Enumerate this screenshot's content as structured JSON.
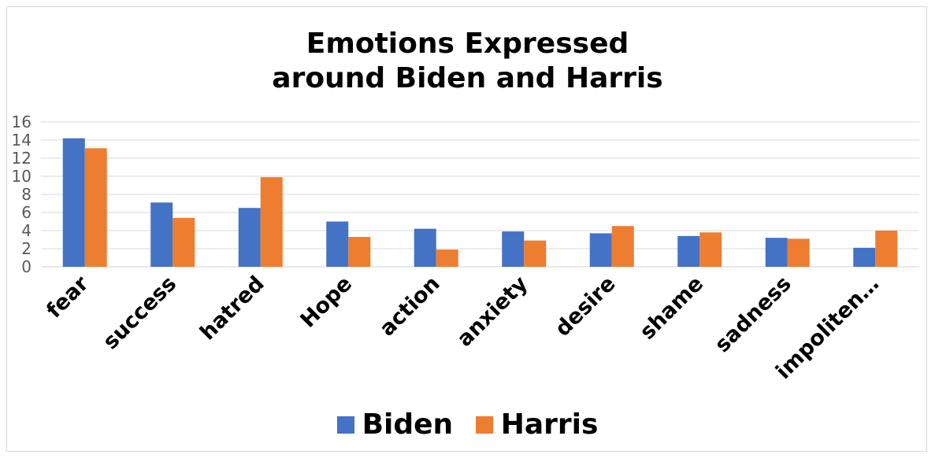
{
  "chart_data": {
    "type": "bar",
    "title": [
      "Emotions Expressed",
      "around Biden and Harris"
    ],
    "categories": [
      "fear",
      "success",
      "hatred",
      "Hope",
      "action",
      "anxiety",
      "desire",
      "shame",
      "sadness",
      "impoliten…"
    ],
    "series": [
      {
        "name": "Biden",
        "color": "#4472c4",
        "values": [
          14.2,
          7.1,
          6.5,
          5.0,
          4.2,
          3.9,
          3.7,
          3.4,
          3.2,
          2.1
        ]
      },
      {
        "name": "Harris",
        "color": "#ed7d31",
        "values": [
          13.1,
          5.4,
          9.9,
          3.3,
          1.9,
          2.9,
          4.5,
          3.8,
          3.1,
          4.0
        ]
      }
    ],
    "yticks": [
      0,
      2,
      4,
      6,
      8,
      10,
      12,
      14,
      16
    ],
    "ylim": [
      0,
      16
    ],
    "grid": true,
    "legend_position": "bottom"
  }
}
